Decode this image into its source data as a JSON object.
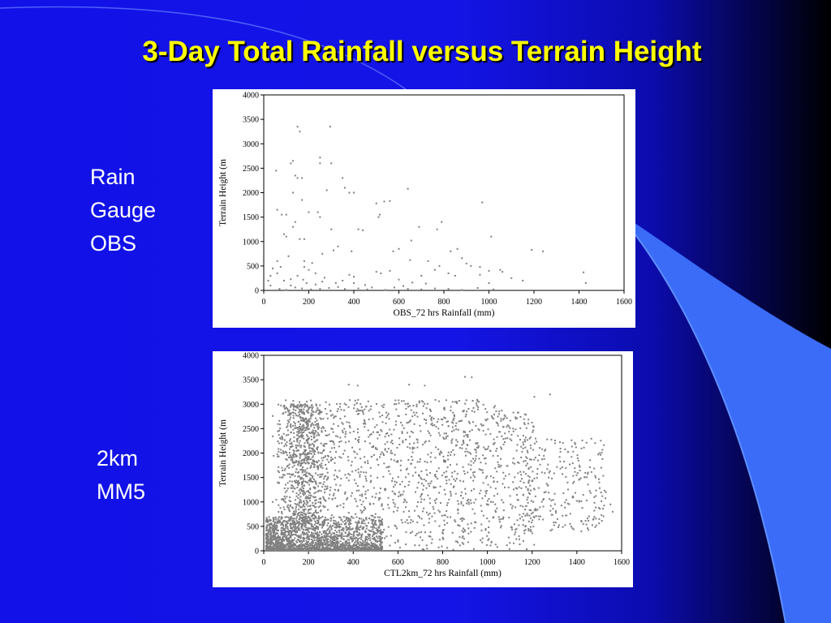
{
  "slide": {
    "title": "3-Day Total Rainfall versus Terrain Height"
  },
  "labels": {
    "obs": [
      "Rain",
      "Gauge",
      "OBS"
    ],
    "mm5": [
      "2km",
      "MM5"
    ]
  },
  "colors": {
    "title": "#ffff00",
    "points": "#808080",
    "frame": "#000000"
  },
  "chart_data": [
    {
      "type": "scatter",
      "xlabel": "OBS_72 hrs Rainfall (mm)",
      "ylabel": "Terrain Height (m",
      "xlim": [
        0,
        1600
      ],
      "ylim": [
        0,
        4000
      ],
      "xticks": [
        0,
        200,
        400,
        600,
        800,
        1000,
        1200,
        1400,
        1600
      ],
      "yticks": [
        0,
        500,
        1000,
        1500,
        2000,
        2500,
        3000,
        3500,
        4000
      ],
      "grid": false,
      "series": [
        {
          "points": [
            [
              150,
              3350
            ],
            [
              160,
              3250
            ],
            [
              295,
              3350
            ],
            [
              250,
              2720
            ],
            [
              250,
              2600
            ],
            [
              300,
              2600
            ],
            [
              130,
              2650
            ],
            [
              120,
              2600
            ],
            [
              150,
              2300
            ],
            [
              170,
              2300
            ],
            [
              140,
              2350
            ],
            [
              55,
              2450
            ],
            [
              350,
              2300
            ],
            [
              280,
              2050
            ],
            [
              360,
              2100
            ],
            [
              380,
              2000
            ],
            [
              130,
              2000
            ],
            [
              170,
              1850
            ],
            [
              400,
              2000
            ],
            [
              535,
              1820
            ],
            [
              500,
              1780
            ],
            [
              560,
              1830
            ],
            [
              640,
              2080
            ],
            [
              970,
              1800
            ],
            [
              200,
              1600
            ],
            [
              240,
              1600
            ],
            [
              250,
              1500
            ],
            [
              140,
              1400
            ],
            [
              130,
              1300
            ],
            [
              160,
              1050
            ],
            [
              180,
              1050
            ],
            [
              90,
              1150
            ],
            [
              100,
              1100
            ],
            [
              300,
              1250
            ],
            [
              420,
              1250
            ],
            [
              440,
              1230
            ],
            [
              690,
              1300
            ],
            [
              790,
              1400
            ],
            [
              770,
              1250
            ],
            [
              515,
              1550
            ],
            [
              510,
              1500
            ],
            [
              655,
              1020
            ],
            [
              600,
              850
            ],
            [
              575,
              800
            ],
            [
              860,
              850
            ],
            [
              830,
              800
            ],
            [
              1010,
              1100
            ],
            [
              1190,
              830
            ],
            [
              1240,
              800
            ],
            [
              1420,
              370
            ],
            [
              1430,
              150
            ],
            [
              330,
              900
            ],
            [
              310,
              820
            ],
            [
              390,
              800
            ],
            [
              260,
              750
            ],
            [
              110,
              700
            ],
            [
              60,
              600
            ],
            [
              80,
              1550
            ],
            [
              100,
              1550
            ],
            [
              60,
              1650
            ],
            [
              380,
              320
            ],
            [
              400,
              280
            ],
            [
              500,
              380
            ],
            [
              520,
              350
            ],
            [
              560,
              400
            ],
            [
              700,
              300
            ],
            [
              780,
              500
            ],
            [
              820,
              350
            ],
            [
              850,
              300
            ],
            [
              900,
              550
            ],
            [
              920,
              500
            ],
            [
              960,
              480
            ],
            [
              1000,
              400
            ],
            [
              1050,
              420
            ],
            [
              1060,
              380
            ],
            [
              1100,
              250
            ],
            [
              1150,
              200
            ],
            [
              660,
              160
            ],
            [
              720,
              140
            ],
            [
              620,
              90
            ],
            [
              480,
              60
            ],
            [
              450,
              110
            ],
            [
              200,
              420
            ],
            [
              230,
              350
            ],
            [
              180,
              480
            ],
            [
              150,
              300
            ],
            [
              40,
              450
            ],
            [
              60,
              350
            ],
            [
              90,
              200
            ],
            [
              120,
              100
            ],
            [
              140,
              60
            ],
            [
              170,
              40
            ],
            [
              210,
              20
            ],
            [
              250,
              30
            ],
            [
              290,
              50
            ],
            [
              330,
              70
            ],
            [
              360,
              30
            ],
            [
              420,
              40
            ],
            [
              460,
              20
            ],
            [
              540,
              10
            ],
            [
              580,
              60
            ],
            [
              640,
              30
            ],
            [
              700,
              20
            ],
            [
              760,
              40
            ],
            [
              820,
              30
            ],
            [
              880,
              10
            ],
            [
              950,
              50
            ],
            [
              1020,
              20
            ],
            [
              30,
              100
            ],
            [
              20,
              200
            ],
            [
              70,
              30
            ],
            [
              100,
              10
            ],
            [
              190,
              150
            ],
            [
              260,
              180
            ],
            [
              320,
              150
            ],
            [
              270,
              260
            ],
            [
              230,
              120
            ],
            [
              400,
              150
            ],
            [
              350,
              200
            ],
            [
              30,
              300
            ],
            [
              75,
              480
            ],
            [
              120,
              230
            ],
            [
              175,
              220
            ],
            [
              215,
              560
            ],
            [
              180,
              600
            ],
            [
              650,
              620
            ],
            [
              880,
              660
            ],
            [
              760,
              420
            ],
            [
              600,
              220
            ],
            [
              730,
              600
            ],
            [
              960,
              320
            ],
            [
              1000,
              150
            ]
          ]
        }
      ]
    },
    {
      "type": "scatter",
      "xlabel": "CTL2km_72 hrs Rainfall (mm)",
      "ylabel": "Terrain Height (m",
      "xlim": [
        0,
        1600
      ],
      "ylim": [
        0,
        4000
      ],
      "xticks": [
        0,
        200,
        400,
        600,
        800,
        1000,
        1200,
        1400,
        1600
      ],
      "yticks": [
        0,
        500,
        1000,
        1500,
        2000,
        2500,
        3000,
        3500,
        4000
      ],
      "grid": false,
      "series": [
        {
          "points": [
            [
              650,
              3400
            ],
            [
              720,
              3380
            ],
            [
              900,
              3560
            ],
            [
              930,
              3550
            ],
            [
              1210,
              3150
            ],
            [
              1280,
              3200
            ],
            [
              380,
              3400
            ],
            [
              420,
              3380
            ],
            [
              1450,
              1600
            ],
            [
              1500,
              1400
            ],
            [
              1530,
              1200
            ],
            [
              1550,
              950
            ],
            [
              1560,
              800
            ],
            [
              1500,
              650
            ],
            [
              1420,
              400
            ]
          ]
        }
      ]
    }
  ]
}
